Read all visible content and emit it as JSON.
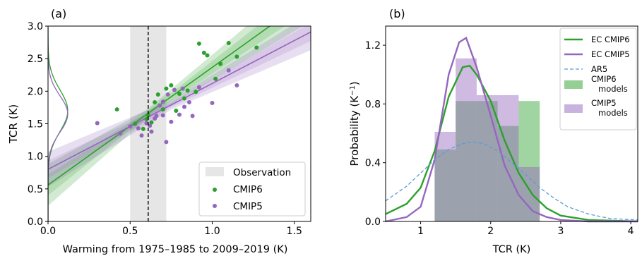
{
  "chart_data": [
    {
      "panel_label": "(a)",
      "type": "scatter",
      "xlabel": "Warming from 1975–1985 to 2009–2019 (K)",
      "ylabel": "TCR (K)",
      "xlim": [
        0.0,
        1.6
      ],
      "ylim": [
        0.0,
        3.0
      ],
      "xticks": [
        0.0,
        0.5,
        1.0,
        1.5
      ],
      "xtick_labels": [
        "0.0",
        "0.5",
        "1.0",
        "1.5"
      ],
      "yticks": [
        0.0,
        0.5,
        1.0,
        1.5,
        2.0,
        2.5,
        3.0
      ],
      "ytick_labels": [
        "0.0",
        "0.5",
        "1.0",
        "1.5",
        "2.0",
        "2.5",
        "3.0"
      ],
      "legend_position": "bottom-right",
      "observation": {
        "name": "Observation",
        "center": 0.61,
        "range": [
          0.5,
          0.72
        ],
        "color": "#e6e6e6"
      },
      "series": [
        {
          "name": "CMIP6",
          "color": "#2ca02c",
          "points": [
            [
              0.42,
              1.72
            ],
            [
              0.53,
              1.5
            ],
            [
              0.58,
              1.42
            ],
            [
              0.6,
              1.57
            ],
            [
              0.61,
              1.63
            ],
            [
              0.63,
              1.52
            ],
            [
              0.65,
              1.83
            ],
            [
              0.67,
              1.95
            ],
            [
              0.7,
              1.72
            ],
            [
              0.72,
              2.04
            ],
            [
              0.75,
              2.09
            ],
            [
              0.78,
              1.7
            ],
            [
              0.8,
              1.96
            ],
            [
              0.83,
              1.89
            ],
            [
              0.85,
              2.01
            ],
            [
              0.9,
              1.99
            ],
            [
              0.92,
              2.73
            ],
            [
              0.95,
              2.59
            ],
            [
              0.97,
              2.55
            ],
            [
              1.02,
              2.19
            ],
            [
              1.05,
              2.42
            ],
            [
              1.1,
              2.74
            ],
            [
              1.15,
              2.53
            ],
            [
              1.27,
              2.67
            ]
          ],
          "regression": {
            "x": [
              0.0,
              1.6
            ],
            "y": [
              0.56,
              3.45
            ]
          }
        },
        {
          "name": "CMIP5",
          "color": "#9467bd",
          "points": [
            [
              0.3,
              1.51
            ],
            [
              0.44,
              1.35
            ],
            [
              0.5,
              1.46
            ],
            [
              0.55,
              1.43
            ],
            [
              0.57,
              1.32
            ],
            [
              0.6,
              1.51
            ],
            [
              0.62,
              1.47
            ],
            [
              0.63,
              1.38
            ],
            [
              0.65,
              1.58
            ],
            [
              0.66,
              1.62
            ],
            [
              0.68,
              1.78
            ],
            [
              0.7,
              1.84
            ],
            [
              0.7,
              1.63
            ],
            [
              0.72,
              1.22
            ],
            [
              0.73,
              1.95
            ],
            [
              0.75,
              1.53
            ],
            [
              0.77,
              2.02
            ],
            [
              0.8,
              1.64
            ],
            [
              0.82,
              2.04
            ],
            [
              0.83,
              1.76
            ],
            [
              0.86,
              1.83
            ],
            [
              0.88,
              1.62
            ],
            [
              0.92,
              2.06
            ],
            [
              1.0,
              1.82
            ],
            [
              1.1,
              2.32
            ],
            [
              1.15,
              2.09
            ]
          ],
          "regression": {
            "x": [
              0.0,
              1.6
            ],
            "y": [
              0.8,
              2.91
            ]
          }
        }
      ]
    },
    {
      "panel_label": "(b)",
      "type": "bar",
      "xlabel": "TCR (K)",
      "ylabel": "Probability (K",
      "ylabel_sup": "−1",
      "ylabel_end": ")",
      "xlim": [
        0.5,
        4.1
      ],
      "ylim": [
        0.0,
        1.33
      ],
      "xticks": [
        1,
        2,
        3,
        4
      ],
      "xtick_labels": [
        "1",
        "2",
        "3",
        "4"
      ],
      "yticks": [
        0.0,
        0.4,
        0.8,
        1.2
      ],
      "ytick_labels": [
        "0.0",
        "0.4",
        "0.8",
        "1.2"
      ],
      "legend_position": "top-right",
      "bin_edges": [
        1.2,
        1.5,
        1.8,
        2.1,
        2.4,
        2.7
      ],
      "series": [
        {
          "name": "EC CMIP6",
          "kind": "line",
          "color": "#2ca02c",
          "x": [
            0.5,
            0.8,
            1.0,
            1.2,
            1.4,
            1.6,
            1.7,
            1.8,
            2.0,
            2.2,
            2.4,
            2.6,
            2.8,
            3.0,
            3.4,
            4.1
          ],
          "y": [
            0.05,
            0.12,
            0.23,
            0.48,
            0.85,
            1.05,
            1.06,
            1.0,
            0.82,
            0.55,
            0.33,
            0.18,
            0.09,
            0.04,
            0.01,
            0.0
          ]
        },
        {
          "name": "EC CMIP5",
          "kind": "line",
          "color": "#9467bd",
          "x": [
            0.5,
            0.8,
            1.0,
            1.2,
            1.4,
            1.55,
            1.65,
            1.8,
            2.0,
            2.2,
            2.4,
            2.6,
            2.8,
            3.0,
            3.4,
            4.1
          ],
          "y": [
            0.0,
            0.03,
            0.1,
            0.42,
            1.0,
            1.22,
            1.25,
            1.05,
            0.72,
            0.38,
            0.18,
            0.07,
            0.03,
            0.01,
            0.0,
            0.0
          ]
        },
        {
          "name": "AR5",
          "kind": "dashed",
          "color": "#5b9bd5",
          "x": [
            0.5,
            0.8,
            1.0,
            1.2,
            1.4,
            1.6,
            1.75,
            1.9,
            2.1,
            2.3,
            2.5,
            2.7,
            2.9,
            3.1,
            3.4,
            3.7,
            4.1
          ],
          "y": [
            0.14,
            0.24,
            0.33,
            0.42,
            0.49,
            0.53,
            0.54,
            0.53,
            0.48,
            0.4,
            0.32,
            0.23,
            0.16,
            0.1,
            0.05,
            0.02,
            0.01
          ]
        },
        {
          "name": "CMIP6\nmodels",
          "kind": "hist",
          "color": "#2ca02c",
          "values": [
            0.49,
            0.82,
            0.82,
            0.65,
            0.82
          ]
        },
        {
          "name": "CMIP5\nmodels",
          "kind": "hist",
          "color": "#9467bd",
          "values": [
            0.61,
            1.11,
            0.86,
            0.86,
            0.37
          ]
        }
      ]
    }
  ]
}
